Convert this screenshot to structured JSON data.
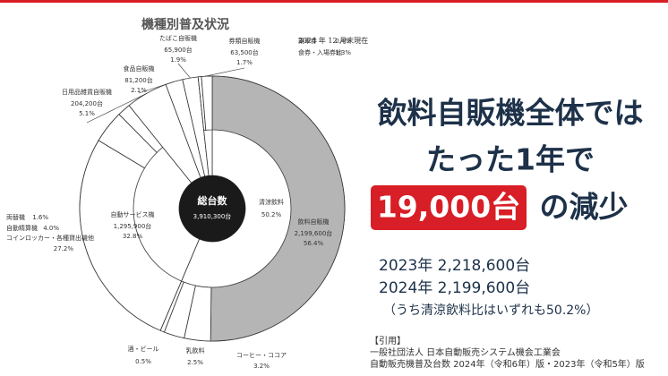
{
  "chart_data": {
    "type": "donut",
    "title": "機種別普及状況",
    "note": "2024 年 12 月末現在",
    "center_label": "総台数",
    "center_value_label": "3,910,300台",
    "categories": [
      "飲料自販機",
      "自動サービス機",
      "日用品雑貨自販機",
      "食品自販機",
      "たばこ自販機",
      "券類自販機"
    ],
    "values": [
      56.4,
      32.8,
      5.1,
      2.1,
      1.9,
      1.7
    ],
    "value_labels": [
      "56.4%",
      "32.8%",
      "5.1%",
      "2.1%",
      "1.9%",
      "1.7%"
    ],
    "count_labels": [
      "2,199,600台",
      "1,295,900台",
      "204,200台",
      "81,200台",
      "65,900台",
      "63,500台"
    ],
    "color": "#ffffff",
    "breakdown": [
      [
        {
          "name": "清涼飲料",
          "value": 50.2,
          "value_label": "50.2%",
          "color": "#b5b5b5"
        },
        {
          "name": "コーヒー・ココア",
          "value": 3.2,
          "value_label": "3.2%",
          "color": "#ffffff"
        },
        {
          "name": "乳飲料",
          "value": 2.5,
          "value_label": "2.5%",
          "color": "#ffffff"
        },
        {
          "name": "酒・ビール",
          "value": 0.5,
          "value_label": "0.5%",
          "color": "#ffffff"
        }
      ],
      [
        {
          "name": "コインロッカー・各種貸出機他",
          "value": 27.2,
          "value_label": "27.2%",
          "color": "#ffffff"
        },
        {
          "name": "自動精算機",
          "value": 4.0,
          "value_label": "4.0%",
          "color": "#ffffff"
        },
        {
          "name": "両替機",
          "value": 1.6,
          "value_label": "1.6%",
          "color": "#ffffff"
        }
      ],
      null,
      null,
      null,
      [
        {
          "name": "乗車券",
          "value": 0.4,
          "value_label": "0.4%",
          "color": "#ffffff"
        },
        {
          "name": "食券・入場券他",
          "value": 1.3,
          "value_label": "1.3%",
          "color": "#ffffff"
        }
      ]
    ]
  },
  "panel": {
    "headline": [
      "飲料自販機全体では",
      "たった1年で"
    ],
    "highlight": "19,000台",
    "highlight_suffix": "の減少",
    "stats": [
      "2023年 2,218,600台",
      "2024年 2,199,600台",
      "（うち清涼飲料比はいずれも50.2%）"
    ],
    "citation": [
      "【引用】",
      "一般社団法人 日本自動販売システム機会工業会",
      "自動販売機普及台数 2024年（令和6年）版・2023年（令和5年）版"
    ]
  }
}
